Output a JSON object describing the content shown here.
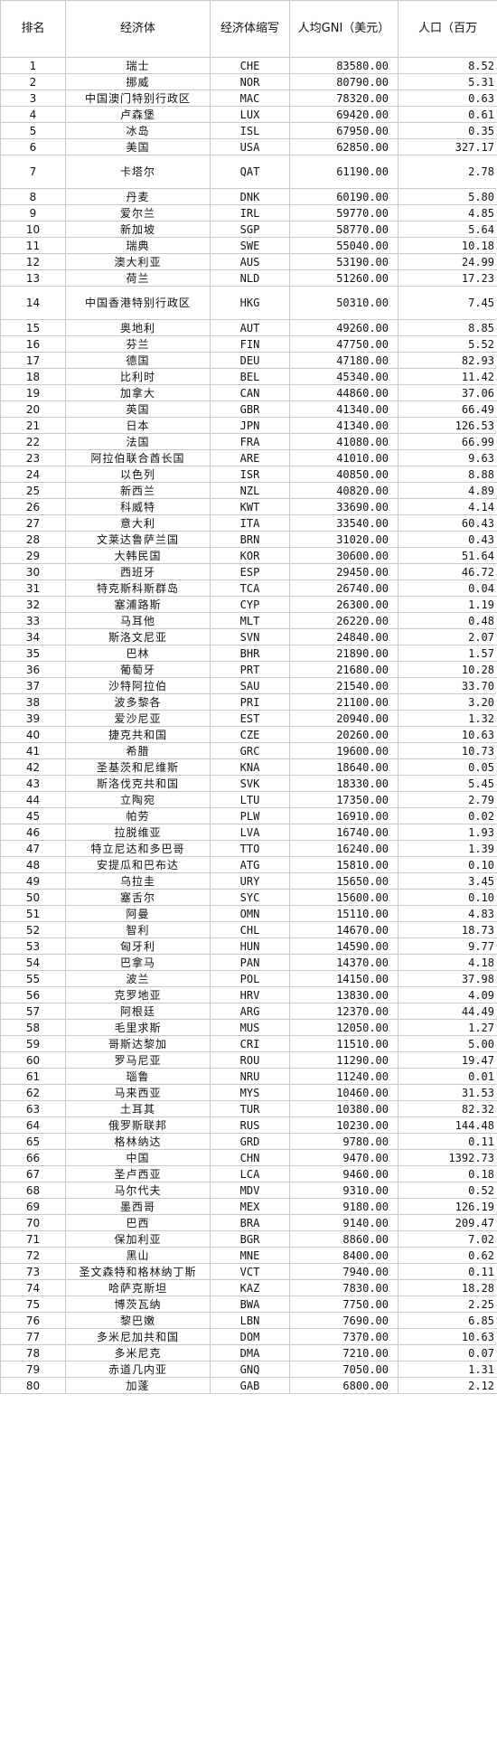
{
  "headers": [
    "排名",
    "经济体",
    "经济体缩写",
    "人均GNI（美元）",
    "人口（百万"
  ],
  "rows": [
    [
      "1",
      "瑞士",
      "CHE",
      "83580.00",
      "8.52"
    ],
    [
      "2",
      "挪威",
      "NOR",
      "80790.00",
      "5.31"
    ],
    [
      "3",
      "中国澳门特别行政区",
      "MAC",
      "78320.00",
      "0.63"
    ],
    [
      "4",
      "卢森堡",
      "LUX",
      "69420.00",
      "0.61"
    ],
    [
      "5",
      "冰岛",
      "ISL",
      "67950.00",
      "0.35"
    ],
    [
      "6",
      "美国",
      "USA",
      "62850.00",
      "327.17"
    ],
    [
      "7",
      "卡塔尔",
      "QAT",
      "61190.00",
      "2.78"
    ],
    [
      "8",
      "丹麦",
      "DNK",
      "60190.00",
      "5.80"
    ],
    [
      "9",
      "爱尔兰",
      "IRL",
      "59770.00",
      "4.85"
    ],
    [
      "10",
      "新加坡",
      "SGP",
      "58770.00",
      "5.64"
    ],
    [
      "11",
      "瑞典",
      "SWE",
      "55040.00",
      "10.18"
    ],
    [
      "12",
      "澳大利亚",
      "AUS",
      "53190.00",
      "24.99"
    ],
    [
      "13",
      "荷兰",
      "NLD",
      "51260.00",
      "17.23"
    ],
    [
      "14",
      "中国香港特别行政区",
      "HKG",
      "50310.00",
      "7.45"
    ],
    [
      "15",
      "奥地利",
      "AUT",
      "49260.00",
      "8.85"
    ],
    [
      "16",
      "芬兰",
      "FIN",
      "47750.00",
      "5.52"
    ],
    [
      "17",
      "德国",
      "DEU",
      "47180.00",
      "82.93"
    ],
    [
      "18",
      "比利时",
      "BEL",
      "45340.00",
      "11.42"
    ],
    [
      "19",
      "加拿大",
      "CAN",
      "44860.00",
      "37.06"
    ],
    [
      "20",
      "英国",
      "GBR",
      "41340.00",
      "66.49"
    ],
    [
      "21",
      "日本",
      "JPN",
      "41340.00",
      "126.53"
    ],
    [
      "22",
      "法国",
      "FRA",
      "41080.00",
      "66.99"
    ],
    [
      "23",
      "阿拉伯联合酋长国",
      "ARE",
      "41010.00",
      "9.63"
    ],
    [
      "24",
      "以色列",
      "ISR",
      "40850.00",
      "8.88"
    ],
    [
      "25",
      "新西兰",
      "NZL",
      "40820.00",
      "4.89"
    ],
    [
      "26",
      "科威特",
      "KWT",
      "33690.00",
      "4.14"
    ],
    [
      "27",
      "意大利",
      "ITA",
      "33540.00",
      "60.43"
    ],
    [
      "28",
      "文莱达鲁萨兰国",
      "BRN",
      "31020.00",
      "0.43"
    ],
    [
      "29",
      "大韩民国",
      "KOR",
      "30600.00",
      "51.64"
    ],
    [
      "30",
      "西班牙",
      "ESP",
      "29450.00",
      "46.72"
    ],
    [
      "31",
      "特克斯科斯群岛",
      "TCA",
      "26740.00",
      "0.04"
    ],
    [
      "32",
      "塞浦路斯",
      "CYP",
      "26300.00",
      "1.19"
    ],
    [
      "33",
      "马耳他",
      "MLT",
      "26220.00",
      "0.48"
    ],
    [
      "34",
      "斯洛文尼亚",
      "SVN",
      "24840.00",
      "2.07"
    ],
    [
      "35",
      "巴林",
      "BHR",
      "21890.00",
      "1.57"
    ],
    [
      "36",
      "葡萄牙",
      "PRT",
      "21680.00",
      "10.28"
    ],
    [
      "37",
      "沙特阿拉伯",
      "SAU",
      "21540.00",
      "33.70"
    ],
    [
      "38",
      "波多黎各",
      "PRI",
      "21100.00",
      "3.20"
    ],
    [
      "39",
      "爱沙尼亚",
      "EST",
      "20940.00",
      "1.32"
    ],
    [
      "40",
      "捷克共和国",
      "CZE",
      "20260.00",
      "10.63"
    ],
    [
      "41",
      "希腊",
      "GRC",
      "19600.00",
      "10.73"
    ],
    [
      "42",
      "圣基茨和尼维斯",
      "KNA",
      "18640.00",
      "0.05"
    ],
    [
      "43",
      "斯洛伐克共和国",
      "SVK",
      "18330.00",
      "5.45"
    ],
    [
      "44",
      "立陶宛",
      "LTU",
      "17350.00",
      "2.79"
    ],
    [
      "45",
      "帕劳",
      "PLW",
      "16910.00",
      "0.02"
    ],
    [
      "46",
      "拉脱维亚",
      "LVA",
      "16740.00",
      "1.93"
    ],
    [
      "47",
      "特立尼达和多巴哥",
      "TTO",
      "16240.00",
      "1.39"
    ],
    [
      "48",
      "安提瓜和巴布达",
      "ATG",
      "15810.00",
      "0.10"
    ],
    [
      "49",
      "乌拉圭",
      "URY",
      "15650.00",
      "3.45"
    ],
    [
      "50",
      "塞舌尔",
      "SYC",
      "15600.00",
      "0.10"
    ],
    [
      "51",
      "阿曼",
      "OMN",
      "15110.00",
      "4.83"
    ],
    [
      "52",
      "智利",
      "CHL",
      "14670.00",
      "18.73"
    ],
    [
      "53",
      "匈牙利",
      "HUN",
      "14590.00",
      "9.77"
    ],
    [
      "54",
      "巴拿马",
      "PAN",
      "14370.00",
      "4.18"
    ],
    [
      "55",
      "波兰",
      "POL",
      "14150.00",
      "37.98"
    ],
    [
      "56",
      "克罗地亚",
      "HRV",
      "13830.00",
      "4.09"
    ],
    [
      "57",
      "阿根廷",
      "ARG",
      "12370.00",
      "44.49"
    ],
    [
      "58",
      "毛里求斯",
      "MUS",
      "12050.00",
      "1.27"
    ],
    [
      "59",
      "哥斯达黎加",
      "CRI",
      "11510.00",
      "5.00"
    ],
    [
      "60",
      "罗马尼亚",
      "ROU",
      "11290.00",
      "19.47"
    ],
    [
      "61",
      "瑙鲁",
      "NRU",
      "11240.00",
      "0.01"
    ],
    [
      "62",
      "马来西亚",
      "MYS",
      "10460.00",
      "31.53"
    ],
    [
      "63",
      "土耳其",
      "TUR",
      "10380.00",
      "82.32"
    ],
    [
      "64",
      "俄罗斯联邦",
      "RUS",
      "10230.00",
      "144.48"
    ],
    [
      "65",
      "格林纳达",
      "GRD",
      "9780.00",
      "0.11"
    ],
    [
      "66",
      "中国",
      "CHN",
      "9470.00",
      "1392.73"
    ],
    [
      "67",
      "圣卢西亚",
      "LCA",
      "9460.00",
      "0.18"
    ],
    [
      "68",
      "马尔代夫",
      "MDV",
      "9310.00",
      "0.52"
    ],
    [
      "69",
      "墨西哥",
      "MEX",
      "9180.00",
      "126.19"
    ],
    [
      "70",
      "巴西",
      "BRA",
      "9140.00",
      "209.47"
    ],
    [
      "71",
      "保加利亚",
      "BGR",
      "8860.00",
      "7.02"
    ],
    [
      "72",
      "黑山",
      "MNE",
      "8400.00",
      "0.62"
    ],
    [
      "73",
      "圣文森特和格林纳丁斯",
      "VCT",
      "7940.00",
      "0.11"
    ],
    [
      "74",
      "哈萨克斯坦",
      "KAZ",
      "7830.00",
      "18.28"
    ],
    [
      "75",
      "博茨瓦纳",
      "BWA",
      "7750.00",
      "2.25"
    ],
    [
      "76",
      "黎巴嫩",
      "LBN",
      "7690.00",
      "6.85"
    ],
    [
      "77",
      "多米尼加共和国",
      "DOM",
      "7370.00",
      "10.63"
    ],
    [
      "78",
      "多米尼克",
      "DMA",
      "7210.00",
      "0.07"
    ],
    [
      "79",
      "赤道几内亚",
      "GNQ",
      "7050.00",
      "1.31"
    ],
    [
      "80",
      "加蓬",
      "GAB",
      "6800.00",
      "2.12"
    ]
  ]
}
